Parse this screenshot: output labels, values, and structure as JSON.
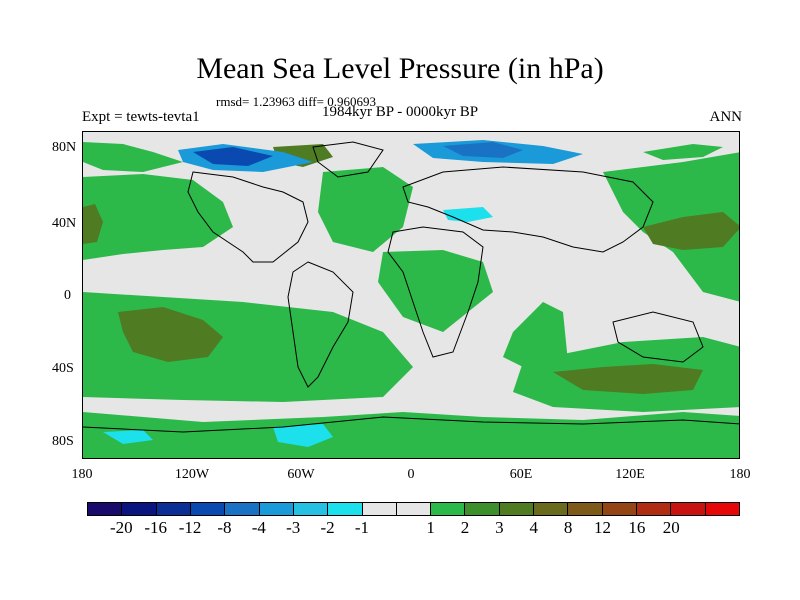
{
  "title": "Mean Sea Level Pressure (in hPa)",
  "stats": "rmsd= 1.23963 diff= 0.960693",
  "experiment": "Expt = tewts-tevta1",
  "period": "1984kyr BP - 0000kyr BP",
  "season": "ANN",
  "lat_labels": [
    "80N",
    "40N",
    "0",
    "40S",
    "80S"
  ],
  "lon_labels": [
    "180",
    "120W",
    "60W",
    "0",
    "60E",
    "120E",
    "180"
  ],
  "colorbar": {
    "colors": [
      "#1a0a6b",
      "#0a157f",
      "#0c2f96",
      "#0a4ab0",
      "#1a72c4",
      "#1a9ad8",
      "#25c1e2",
      "#1ce0ec",
      "#e6e6e6",
      "#e6e6e6",
      "#2db84a",
      "#3c8f2a",
      "#4f7b22",
      "#6a6a1e",
      "#7e5a1a",
      "#944516",
      "#b02c12",
      "#c81410",
      "#e60808"
    ],
    "labels": [
      "-20",
      "-16",
      "-12",
      "-8",
      "-4",
      "-3",
      "-2",
      "-1",
      "1",
      "2",
      "3",
      "4",
      "8",
      "12",
      "16",
      "20"
    ]
  },
  "legend_colors": {
    "background": "#e6e6e6",
    "green": "#2db84a",
    "olive": "#4f7b22",
    "light_blue": "#3dc2ea",
    "blue": "#1a72c4",
    "dark_blue": "#0a4ab0"
  }
}
